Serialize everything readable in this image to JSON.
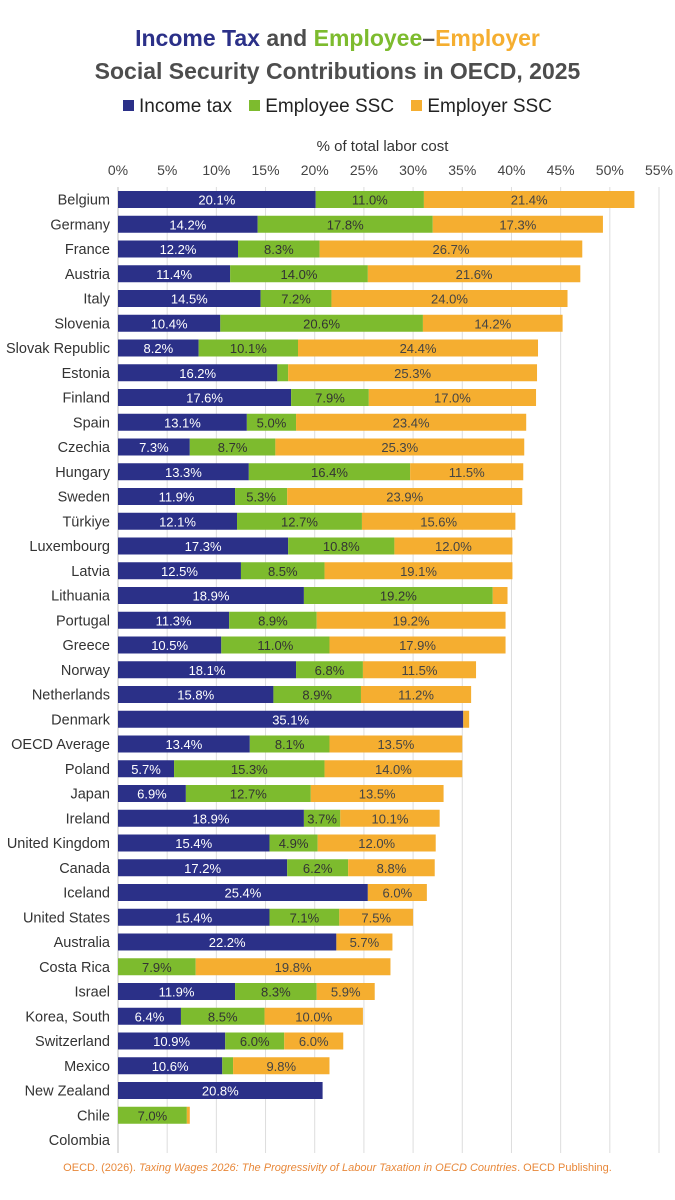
{
  "title": {
    "line1_parts": [
      {
        "text": "Income Tax",
        "color": "#2B3088"
      },
      {
        "text": " and ",
        "color": "#4D4D4D"
      },
      {
        "text": "Employee",
        "color": "#7DBB2E"
      },
      {
        "text": "–",
        "color": "#4D4D4D"
      },
      {
        "text": "Employer",
        "color": "#F5AE30"
      }
    ],
    "line2": "Social Security Contributions in OECD, 2025"
  },
  "legend": [
    {
      "label": "Income tax",
      "color": "#2B3088"
    },
    {
      "label": "Employee SSC",
      "color": "#7DBB2E"
    },
    {
      "label": "Employer SSC",
      "color": "#F5AE30"
    }
  ],
  "source": {
    "prefix": "OECD. (2026). ",
    "title": "Taxing Wages 2026: The Progressivity of Labour Taxation in OECD Countries",
    "suffix": ". OECD Publishing."
  },
  "chart_data": {
    "type": "bar",
    "orientation": "horizontal",
    "stacked": true,
    "xlabel": "% of total labor cost",
    "xlim": [
      0,
      55
    ],
    "xticks": [
      "0%",
      "5%",
      "10%",
      "15%",
      "20%",
      "25%",
      "30%",
      "35%",
      "40%",
      "45%",
      "50%",
      "55%"
    ],
    "grid": "vertical",
    "legend_position": "top",
    "label_colors": {
      "Income tax": "#ffffff",
      "Employee SSC": "#333333",
      "Employer SSC": "#444444"
    },
    "categories": [
      "Belgium",
      "Germany",
      "France",
      "Austria",
      "Italy",
      "Slovenia",
      "Slovak Republic",
      "Estonia",
      "Finland",
      "Spain",
      "Czechia",
      "Hungary",
      "Sweden",
      "Türkiye",
      "Luxembourg",
      "Latvia",
      "Lithuania",
      "Portugal",
      "Greece",
      "Norway",
      "Netherlands",
      "Denmark",
      "OECD Average",
      "Poland",
      "Japan",
      "Ireland",
      "United Kingdom",
      "Canada",
      "Iceland",
      "United States",
      "Australia",
      "Costa Rica",
      "Israel",
      "Korea, South",
      "Switzerland",
      "Mexico",
      "New Zealand",
      "Chile",
      "Colombia"
    ],
    "series": [
      {
        "name": "Income tax",
        "color": "#2B3088",
        "values": [
          20.1,
          14.2,
          12.2,
          11.4,
          14.5,
          10.4,
          8.2,
          16.2,
          17.6,
          13.1,
          7.3,
          13.3,
          11.9,
          12.1,
          17.3,
          12.5,
          18.9,
          11.3,
          10.5,
          18.1,
          15.8,
          35.1,
          13.4,
          5.7,
          6.9,
          18.9,
          15.4,
          17.2,
          25.4,
          15.4,
          22.2,
          0,
          11.9,
          6.4,
          10.9,
          10.6,
          20.8,
          0,
          0
        ],
        "labels": [
          "20.1%",
          "14.2%",
          "12.2%",
          "11.4%",
          "14.5%",
          "10.4%",
          "8.2%",
          "16.2%",
          "17.6%",
          "13.1%",
          "7.3%",
          "13.3%",
          "11.9%",
          "12.1%",
          "17.3%",
          "12.5%",
          "18.9%",
          "11.3%",
          "10.5%",
          "18.1%",
          "15.8%",
          "35.1%",
          "13.4%",
          "5.7%",
          "6.9%",
          "18.9%",
          "15.4%",
          "17.2%",
          "25.4%",
          "15.4%",
          "22.2%",
          "",
          "11.9%",
          "6.4%",
          "10.9%",
          "10.6%",
          "20.8%",
          "",
          ""
        ]
      },
      {
        "name": "Employee SSC",
        "color": "#7DBB2E",
        "values": [
          11.0,
          17.8,
          8.3,
          14.0,
          7.2,
          20.6,
          10.1,
          1.1,
          7.9,
          5.0,
          8.7,
          16.4,
          5.3,
          12.7,
          10.8,
          8.5,
          19.2,
          8.9,
          11.0,
          6.8,
          8.9,
          0,
          8.1,
          15.3,
          12.7,
          3.7,
          4.9,
          6.2,
          0,
          7.1,
          0,
          7.9,
          8.3,
          8.5,
          6.0,
          1.1,
          0,
          7.0,
          0
        ],
        "labels": [
          "11.0%",
          "17.8%",
          "8.3%",
          "14.0%",
          "7.2%",
          "20.6%",
          "10.1%",
          "",
          "7.9%",
          "5.0%",
          "8.7%",
          "16.4%",
          "5.3%",
          "12.7%",
          "10.8%",
          "8.5%",
          "19.2%",
          "8.9%",
          "11.0%",
          "6.8%",
          "8.9%",
          "",
          "8.1%",
          "15.3%",
          "12.7%",
          "3.7%",
          "4.9%",
          "6.2%",
          "",
          "7.1%",
          "",
          "7.9%",
          "8.3%",
          "8.5%",
          "6.0%",
          "",
          "",
          "7.0%",
          ""
        ]
      },
      {
        "name": "Employer SSC",
        "color": "#F5AE30",
        "values": [
          21.4,
          17.3,
          26.7,
          21.6,
          24.0,
          14.2,
          24.4,
          25.3,
          17.0,
          23.4,
          25.3,
          11.5,
          23.9,
          15.6,
          12.0,
          19.1,
          1.5,
          19.2,
          17.9,
          11.5,
          11.2,
          0.6,
          13.5,
          14.0,
          13.5,
          10.1,
          12.0,
          8.8,
          6.0,
          7.5,
          5.7,
          19.8,
          5.9,
          10.0,
          6.0,
          9.8,
          0,
          0.3,
          0
        ],
        "labels": [
          "21.4%",
          "17.3%",
          "26.7%",
          "21.6%",
          "24.0%",
          "14.2%",
          "24.4%",
          "25.3%",
          "17.0%",
          "23.4%",
          "25.3%",
          "11.5%",
          "23.9%",
          "15.6%",
          "12.0%",
          "19.1%",
          "",
          "19.2%",
          "17.9%",
          "11.5%",
          "11.2%",
          "",
          "13.5%",
          "14.0%",
          "13.5%",
          "10.1%",
          "12.0%",
          "8.8%",
          "6.0%",
          "7.5%",
          "5.7%",
          "19.8%",
          "5.9%",
          "10.0%",
          "6.0%",
          "9.8%",
          "",
          "",
          ""
        ]
      }
    ]
  }
}
